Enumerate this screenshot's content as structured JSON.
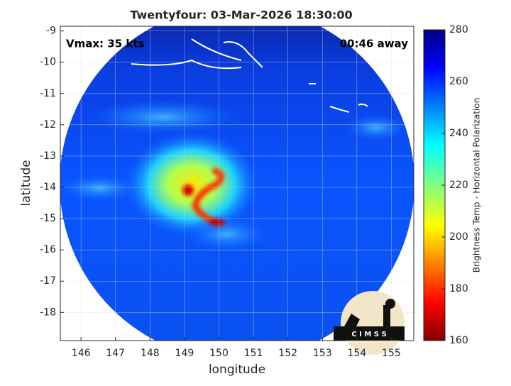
{
  "chart_data": {
    "type": "map",
    "title": "Twentyfour: 03-Mar-2026 18:30:00",
    "annotations": [
      "Vmax: 35 kts",
      "00:46 away"
    ],
    "x_label": "longitude",
    "y_label": "latitude",
    "xlim": [
      145.4,
      155.65
    ],
    "ylim": [
      -18.9,
      -8.85
    ],
    "xticks": [
      146,
      147,
      148,
      149,
      150,
      151,
      152,
      153,
      154,
      155
    ],
    "yticks": [
      -9,
      -10,
      -11,
      -12,
      -13,
      -14,
      -15,
      -16,
      -17,
      -18
    ],
    "grid": true,
    "colorbar": {
      "label": "Brightness Temp - Horizontal Polarization",
      "lim": [
        160,
        280
      ],
      "ticks": [
        160,
        180,
        200,
        220,
        240,
        260,
        280
      ]
    },
    "logo": "C I M S S"
  }
}
